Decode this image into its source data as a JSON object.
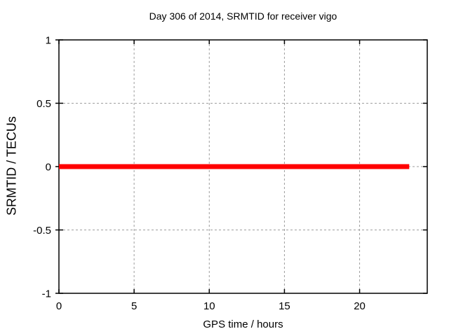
{
  "chart_data": {
    "type": "line",
    "title": "Day 306 of 2014, SRMTID for receiver vigo",
    "xlabel": "GPS time / hours",
    "ylabel": "SRMTID / TECUs",
    "xlim": [
      0,
      24.5
    ],
    "ylim": [
      -1,
      1
    ],
    "xticks": [
      {
        "value": 0,
        "label": "0"
      },
      {
        "value": 5,
        "label": "5"
      },
      {
        "value": 10,
        "label": "10"
      },
      {
        "value": 15,
        "label": "15"
      },
      {
        "value": 20,
        "label": "20"
      }
    ],
    "yticks": [
      {
        "value": -1,
        "label": "-1"
      },
      {
        "value": -0.5,
        "label": "-0.5"
      },
      {
        "value": 0,
        "label": "0"
      },
      {
        "value": 0.5,
        "label": "0.5"
      },
      {
        "value": 1,
        "label": "1"
      }
    ],
    "grid": {
      "show": true,
      "color": "#9e9e9e",
      "dash": "3,3"
    },
    "border_color": "#000000",
    "background": "#ffffff",
    "legend": "none",
    "series": [
      {
        "name": "SRMTID",
        "type": "line",
        "color": "#ff0000",
        "line_width": 7,
        "points": [
          [
            0,
            0
          ],
          [
            23.3,
            0
          ]
        ]
      }
    ]
  }
}
